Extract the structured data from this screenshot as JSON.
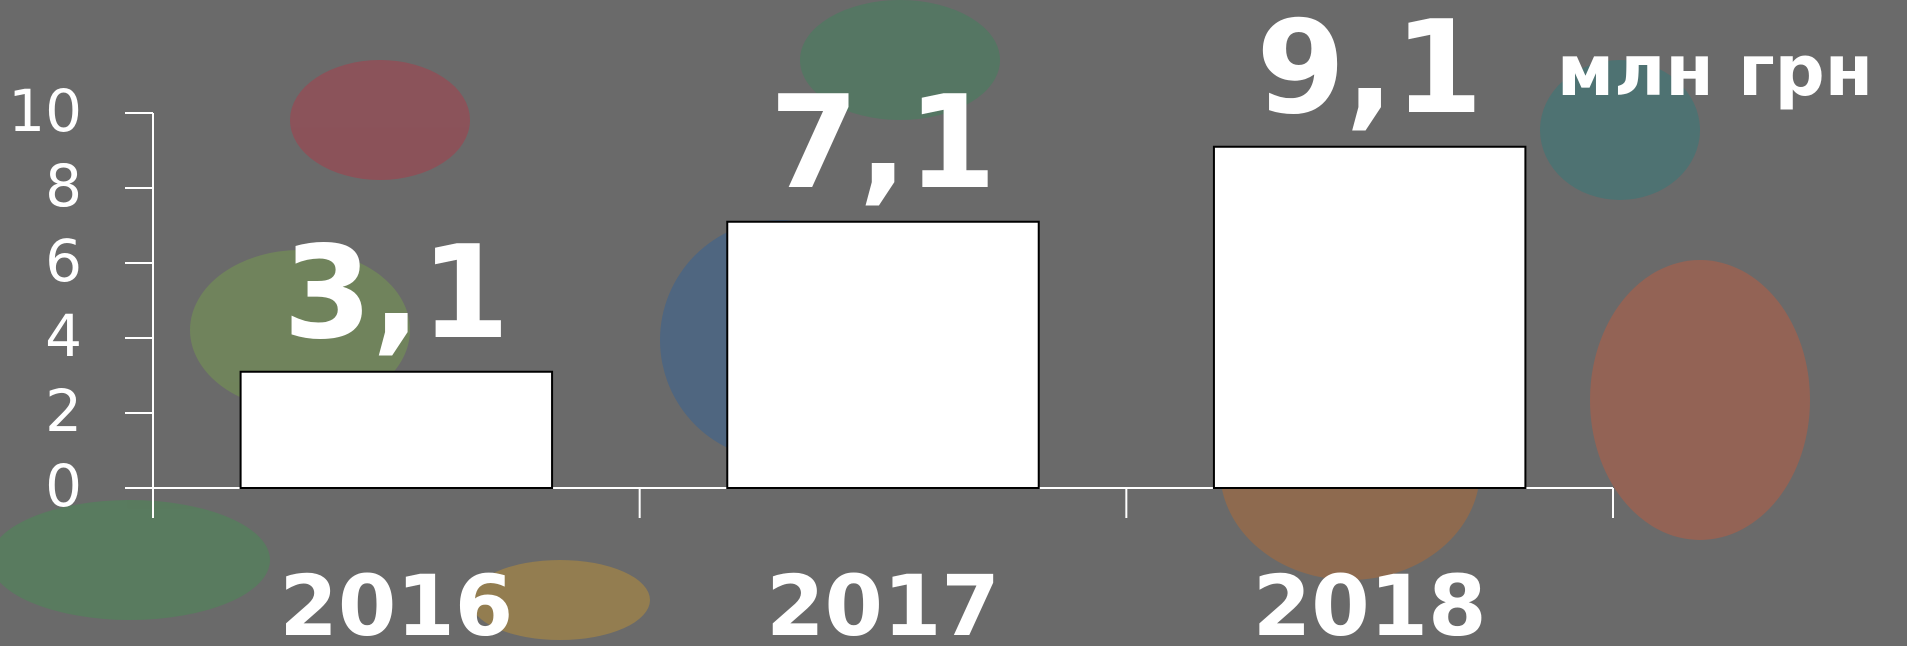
{
  "chart_data": {
    "type": "bar",
    "annotation": "млн грн",
    "categories": [
      "2016",
      "2017",
      "2018"
    ],
    "values": [
      3.1,
      7.1,
      9.1
    ],
    "value_labels": [
      "3,1",
      "7,1",
      "9,1"
    ],
    "color": "#ffffff",
    "ylim": [
      0,
      10
    ],
    "yticks": [
      0,
      2,
      4,
      6,
      8,
      10
    ]
  }
}
